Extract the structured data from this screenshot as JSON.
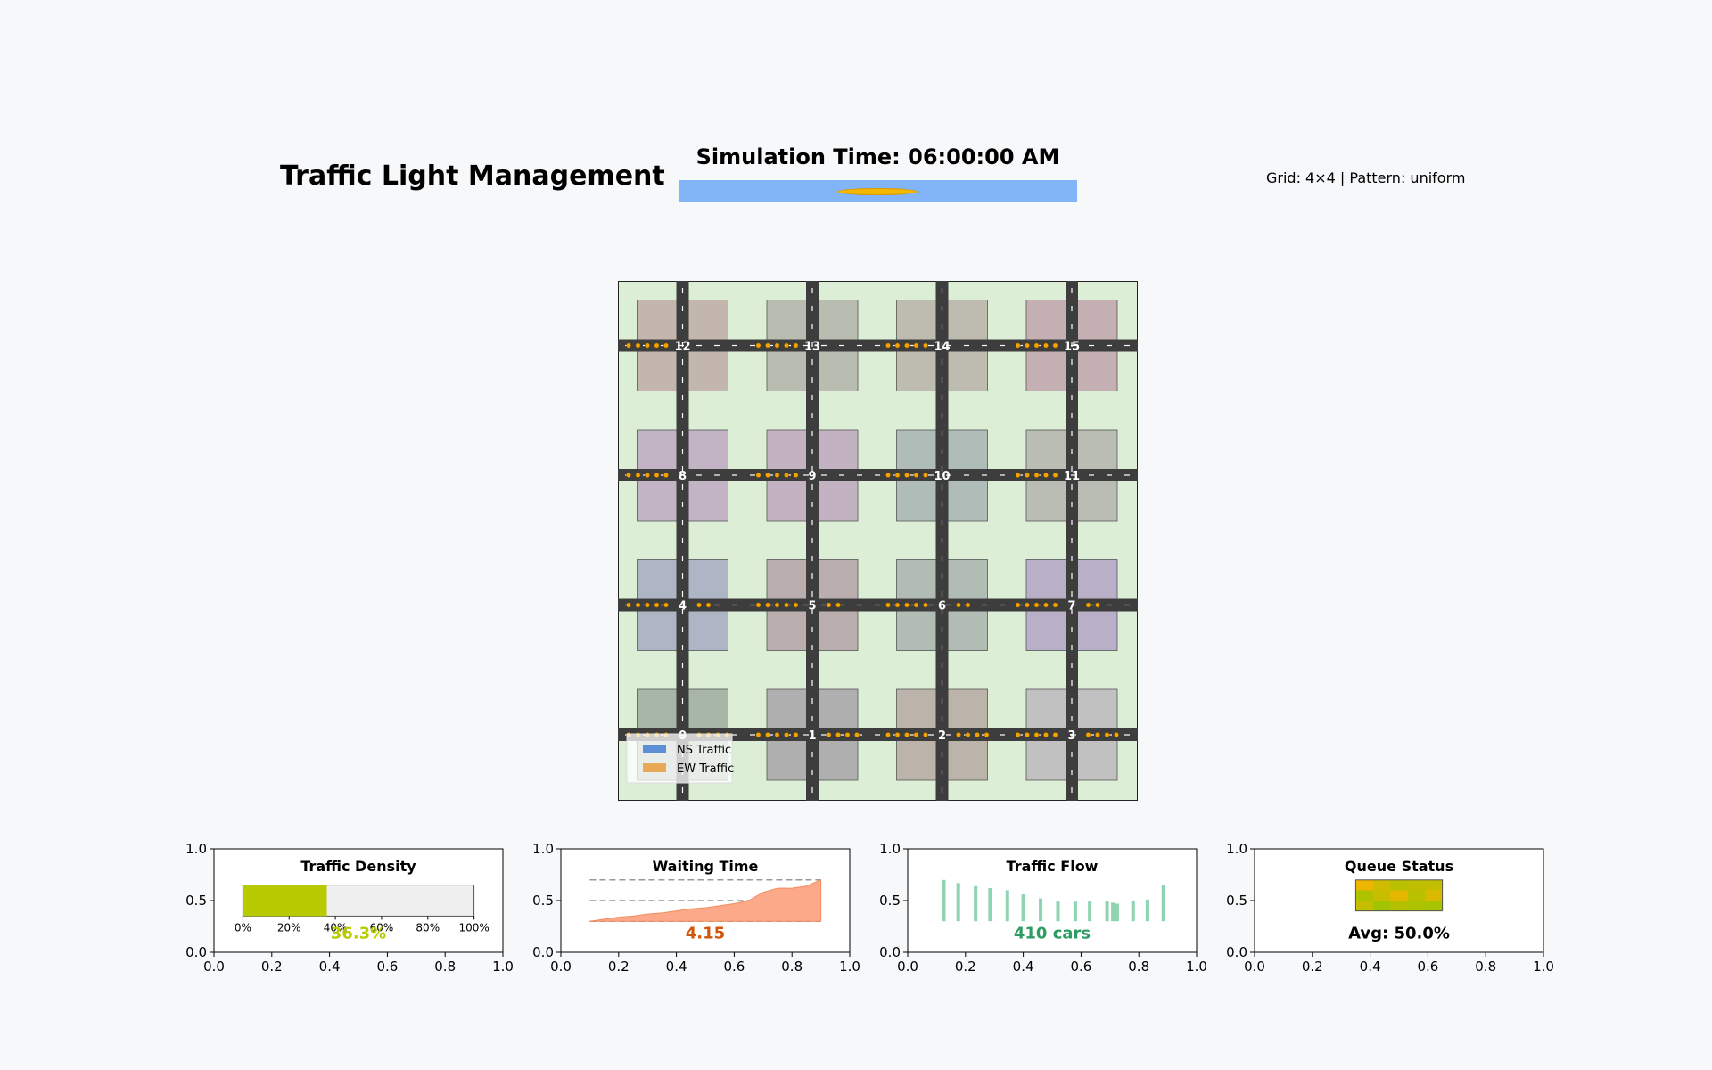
{
  "header": {
    "title": "Traffic Light Management",
    "sim_time": "Simulation Time: 06:00:00 AM",
    "grid_info": "Grid: 4×4 | Pattern: uniform"
  },
  "map": {
    "intersections": [
      "0",
      "1",
      "2",
      "3",
      "4",
      "5",
      "6",
      "7",
      "8",
      "9",
      "10",
      "11",
      "12",
      "13",
      "14",
      "15"
    ],
    "legend": [
      {
        "label": "NS Traffic",
        "color": "#5b8fd8"
      },
      {
        "label": "EW Traffic",
        "color": "#e8a855"
      }
    ],
    "colors": {
      "grass": "#dceed5",
      "road": "#3d3d3d",
      "car": "#f5a300",
      "label": "#ffffff"
    },
    "block_colors": [
      [
        "#a8b6a8",
        "#afafaf",
        "#bcb3ab",
        "#c1c1c1"
      ],
      [
        "#aeb6c5",
        "#bbaeae",
        "#b1bcb5",
        "#b9afc6"
      ],
      [
        "#c2b4c4",
        "#c3b3c2",
        "#b0bcb8",
        "#b9bdb4"
      ],
      [
        "#c2b6ae",
        "#b9bcb0",
        "#bebcb0",
        "#c4b0b3"
      ]
    ]
  },
  "axes": {
    "xticks": [
      "0.0",
      "0.2",
      "0.4",
      "0.6",
      "0.8",
      "1.0"
    ],
    "yticks": [
      "0.0",
      "0.5",
      "1.0"
    ]
  },
  "panels": {
    "density": {
      "title": "Traffic Density",
      "value": 0.363,
      "value_label": "36.3%",
      "ticks": [
        "0%",
        "20%",
        "40%",
        "60%",
        "80%",
        "100%"
      ],
      "color": "#b8cb00"
    },
    "waiting": {
      "title": "Waiting Time",
      "value_label": "4.15",
      "color": "#d2550a",
      "fill": "#fba988"
    },
    "flow": {
      "title": "Traffic Flow",
      "value_label": "410 cars",
      "color": "#2e9c63",
      "bar_color": "#8fd4b0"
    },
    "queue": {
      "title": "Queue Status",
      "value_label": "Avg: 50.0%"
    }
  },
  "chart_data": [
    {
      "type": "bar",
      "title": "Traffic Density",
      "categories": [
        "density"
      ],
      "values": [
        0.363
      ],
      "xlim": [
        0,
        1
      ],
      "ylim": [
        0,
        1
      ],
      "grid": false
    },
    {
      "type": "area",
      "title": "Waiting Time",
      "x": [
        0.1,
        0.15,
        0.2,
        0.25,
        0.3,
        0.35,
        0.4,
        0.45,
        0.5,
        0.55,
        0.6,
        0.65,
        0.7,
        0.75,
        0.8,
        0.85,
        0.9
      ],
      "y": [
        0.3,
        0.32,
        0.34,
        0.35,
        0.37,
        0.38,
        0.4,
        0.42,
        0.43,
        0.45,
        0.47,
        0.5,
        0.58,
        0.62,
        0.62,
        0.64,
        0.7
      ],
      "xlim": [
        0,
        1
      ],
      "ylim": [
        0,
        1
      ],
      "grid": false
    },
    {
      "type": "bar",
      "title": "Traffic Flow",
      "x": [
        0.125,
        0.175,
        0.235,
        0.285,
        0.345,
        0.4,
        0.46,
        0.52,
        0.58,
        0.63,
        0.69,
        0.71,
        0.725,
        0.78,
        0.83,
        0.885
      ],
      "values": [
        0.7,
        0.67,
        0.64,
        0.62,
        0.6,
        0.56,
        0.52,
        0.49,
        0.49,
        0.49,
        0.5,
        0.48,
        0.47,
        0.5,
        0.51,
        0.65
      ],
      "base": 0.3,
      "xlim": [
        0,
        1
      ],
      "ylim": [
        0,
        1
      ],
      "grid": false
    },
    {
      "type": "heatmap",
      "title": "Queue Status",
      "values": [
        [
          0.9,
          0.6,
          0.4,
          0.45,
          0.5
        ],
        [
          0.3,
          0.55,
          0.8,
          0.4,
          0.7
        ],
        [
          0.5,
          0.2,
          0.35,
          0.3,
          0.25
        ]
      ],
      "xlim": [
        0,
        1
      ],
      "ylim": [
        0,
        1
      ],
      "grid": false
    }
  ]
}
